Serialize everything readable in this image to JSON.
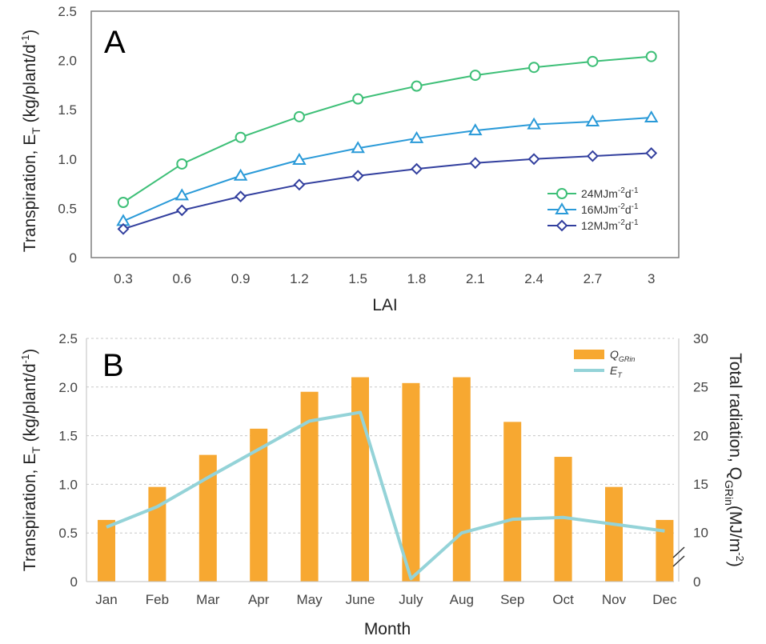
{
  "chart_data": [
    {
      "panel": "A",
      "type": "line",
      "xlabel": "LAI",
      "ylabel_main": "Transpiration, E",
      "ylabel_sub": "T",
      "ylabel_unit": "(kg/plant/d",
      "ylabel_unit_sup": "-1",
      "x": [
        "0.3",
        "0.6",
        "0.9",
        "1.2",
        "1.5",
        "1.8",
        "2.1",
        "2.4",
        "2.7",
        "3"
      ],
      "ylim": [
        0,
        2.5
      ],
      "yticks": [
        "0",
        "0.5",
        "1.0",
        "1.5",
        "2.0",
        "2.5"
      ],
      "grid": false,
      "legend_position": "lower-right",
      "series": [
        {
          "name": "24MJm",
          "name_sup1": "-2",
          "name_mid": "d",
          "name_sup2": "-1",
          "color": "#3dbf77",
          "marker": "circle",
          "values": [
            0.56,
            0.95,
            1.22,
            1.43,
            1.61,
            1.74,
            1.85,
            1.93,
            1.99,
            2.04
          ]
        },
        {
          "name": "16MJm",
          "name_sup1": "-2",
          "name_mid": "d",
          "name_sup2": "-1",
          "color": "#2a9ad8",
          "marker": "triangle",
          "values": [
            0.37,
            0.63,
            0.83,
            0.99,
            1.11,
            1.21,
            1.29,
            1.35,
            1.38,
            1.42
          ]
        },
        {
          "name": "12MJm",
          "name_sup1": "-2",
          "name_mid": "d",
          "name_sup2": "-1",
          "color": "#323f9e",
          "marker": "diamond",
          "values": [
            0.29,
            0.48,
            0.62,
            0.74,
            0.83,
            0.9,
            0.96,
            1.0,
            1.03,
            1.06
          ]
        }
      ]
    },
    {
      "panel": "B",
      "type": "bar+line",
      "xlabel": "Month",
      "ylabel_main": "Transpiration, E",
      "ylabel_sub": "T",
      "ylabel_unit": "(kg/plant/d",
      "ylabel_unit_sup": "-1",
      "y2label_main": "Total radiation, Q",
      "y2label_sub": "GRin",
      "y2label_unit": "(MJ/m",
      "y2label_unit_sup": "-2",
      "categories": [
        "Jan",
        "Feb",
        "Mar",
        "Apr",
        "May",
        "June",
        "July",
        "Aug",
        "Sep",
        "Oct",
        "Nov",
        "Dec"
      ],
      "ylim": [
        0,
        2.5
      ],
      "yticks": [
        "0",
        "0.5",
        "1.0",
        "1.5",
        "2.0",
        "2.5"
      ],
      "y2ticks": [
        "0",
        "10",
        "15",
        "20",
        "25",
        "30"
      ],
      "y2_axis_break": true,
      "grid": "horizontal dashed",
      "legend_position": "top-right",
      "series": [
        {
          "name": "Q",
          "name_sub": "GRin",
          "kind": "bar",
          "axis": "right",
          "color": "#f7a831",
          "values": [
            11.3,
            14.7,
            18.0,
            20.7,
            24.5,
            26.0,
            25.4,
            26.0,
            21.4,
            17.8,
            14.7,
            11.3
          ]
        },
        {
          "name": "E",
          "name_sub": "T",
          "kind": "line",
          "axis": "left",
          "color": "#94d3d8",
          "values": [
            0.56,
            0.77,
            1.07,
            1.36,
            1.65,
            1.74,
            0.03,
            0.5,
            0.64,
            0.66,
            0.59,
            0.52
          ]
        }
      ]
    }
  ]
}
